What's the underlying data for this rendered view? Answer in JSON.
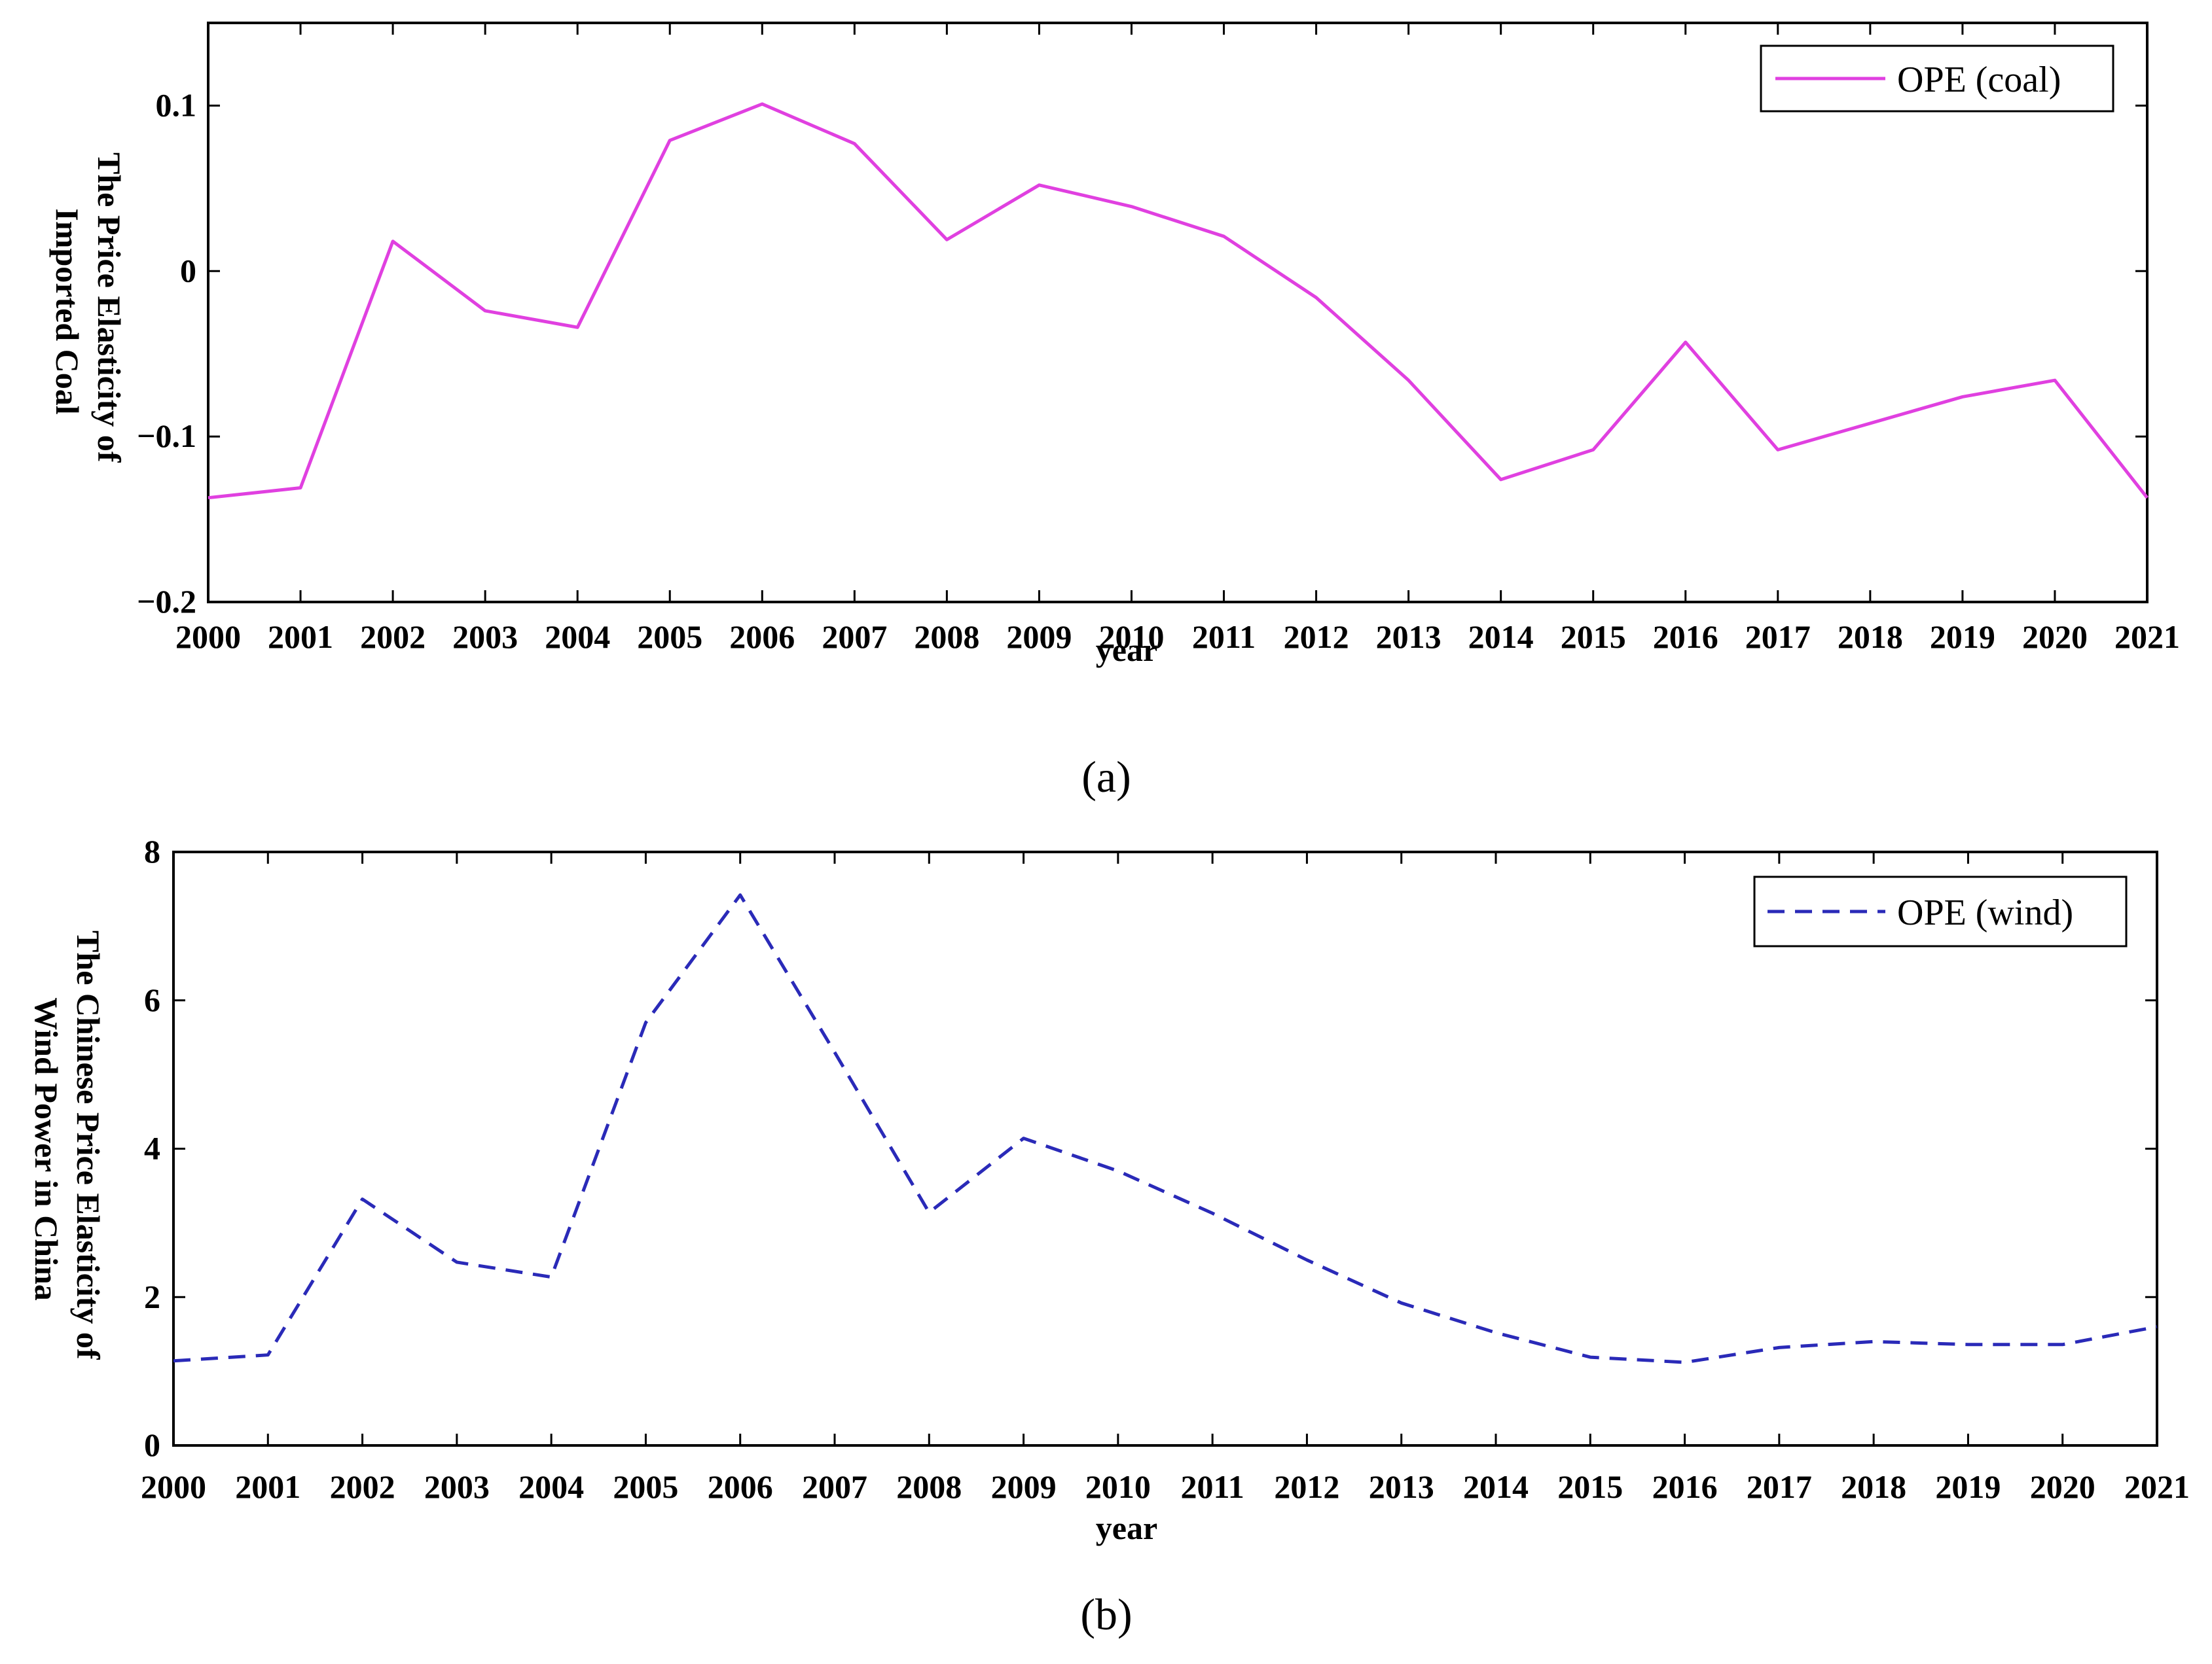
{
  "chart_data": [
    {
      "type": "line",
      "caption": "(a)",
      "xlabel": "year",
      "ylabel_lines": [
        "The Price Elasticity of",
        "Imported Coal"
      ],
      "categories": [
        "2000",
        "2001",
        "2002",
        "2003",
        "2004",
        "2005",
        "2006",
        "2007",
        "2008",
        "2009",
        "2010",
        "2011",
        "2012",
        "2013",
        "2014",
        "2015",
        "2016",
        "2017",
        "2018",
        "2019",
        "2020",
        "2021"
      ],
      "yticks": [
        -0.2,
        -0.1,
        0,
        0.1
      ],
      "ytick_labels": [
        "−0.2",
        "−0.1",
        "0",
        "0.1"
      ],
      "ylim": [
        -0.2,
        0.15
      ],
      "series": [
        {
          "name": "OPE (coal)",
          "color": "#e040e0",
          "dash": "solid",
          "values": [
            -0.137,
            -0.131,
            0.018,
            -0.024,
            -0.034,
            0.079,
            0.101,
            0.077,
            0.019,
            0.052,
            0.039,
            0.021,
            -0.016,
            -0.066,
            -0.126,
            -0.108,
            -0.043,
            -0.108,
            -0.092,
            -0.076,
            -0.066,
            -0.137
          ]
        }
      ],
      "legend_position": "top-right"
    },
    {
      "type": "line",
      "caption": "(b)",
      "xlabel": "year",
      "ylabel_lines": [
        "The Chinese Price Elasticity of",
        "Wind Power in China"
      ],
      "categories": [
        "2000",
        "2001",
        "2002",
        "2003",
        "2004",
        "2005",
        "2006",
        "2007",
        "2008",
        "2009",
        "2010",
        "2011",
        "2012",
        "2013",
        "2014",
        "2015",
        "2016",
        "2017",
        "2018",
        "2019",
        "2020",
        "2021"
      ],
      "yticks": [
        0,
        2,
        4,
        6,
        8
      ],
      "ytick_labels": [
        "0",
        "2",
        "4",
        "6",
        "8"
      ],
      "ylim": [
        0,
        8
      ],
      "series": [
        {
          "name": "OPE (wind)",
          "color": "#2a2ab8",
          "dash": "dashed",
          "values": [
            1.14,
            1.22,
            3.32,
            2.47,
            2.27,
            5.7,
            7.42,
            5.3,
            3.14,
            4.14,
            3.7,
            3.13,
            2.5,
            1.92,
            1.52,
            1.19,
            1.12,
            1.32,
            1.4,
            1.36,
            1.36,
            1.6
          ]
        }
      ],
      "legend_position": "top-right"
    }
  ]
}
